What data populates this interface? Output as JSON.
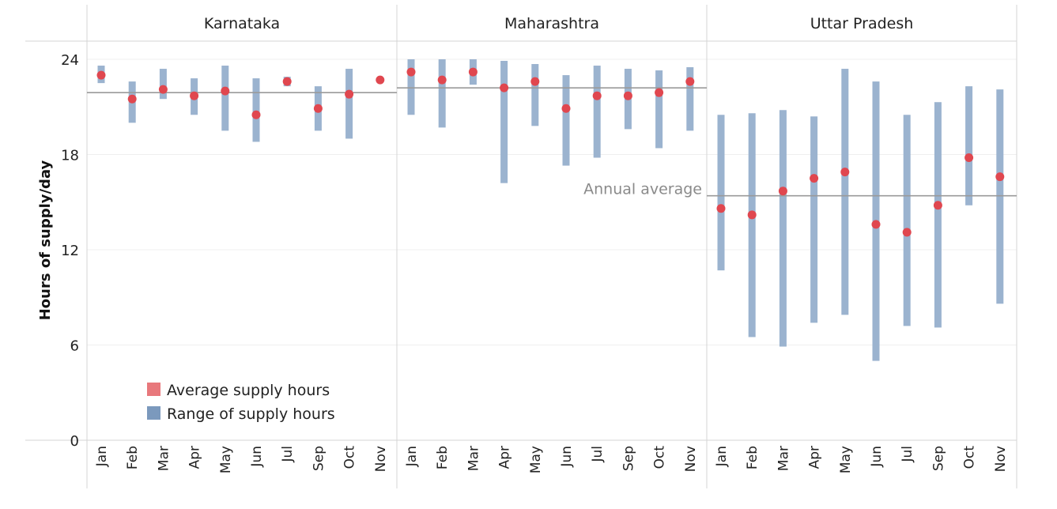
{
  "chart_data": {
    "type": "range-dot",
    "ylabel": "Hours of supply/day",
    "ylim": [
      0,
      24
    ],
    "yticks": [
      0,
      6,
      12,
      18,
      24
    ],
    "grid": true,
    "legend_position": "bottom-left",
    "legend": [
      {
        "label": "Average supply hours",
        "color": "#e8787c"
      },
      {
        "label": "Range of supply hours",
        "color": "#7b99bd"
      }
    ],
    "colors": {
      "dot": "#e0474f",
      "bar": "#9bb3cf",
      "reference_line": "#9a9a9a"
    },
    "reference_label": "Annual average",
    "panels": [
      {
        "name": "Karnataka",
        "annual_average": 21.9,
        "months": [
          "Jan",
          "Feb",
          "Mar",
          "Apr",
          "May",
          "Jun",
          "Jul",
          "Sep",
          "Oct",
          "Nov"
        ],
        "avg": [
          23.0,
          21.5,
          22.1,
          21.7,
          22.0,
          20.5,
          22.6,
          20.9,
          21.8,
          22.7
        ],
        "low": [
          22.5,
          20.0,
          21.5,
          20.5,
          19.5,
          18.8,
          22.3,
          19.5,
          19.0,
          null
        ],
        "high": [
          23.6,
          22.6,
          23.4,
          22.8,
          23.6,
          22.8,
          22.9,
          22.3,
          23.4,
          null
        ]
      },
      {
        "name": "Maharashtra",
        "annual_average": 22.2,
        "months": [
          "Jan",
          "Feb",
          "Mar",
          "Apr",
          "May",
          "Jun",
          "Jul",
          "Sep",
          "Oct",
          "Nov"
        ],
        "avg": [
          23.2,
          22.7,
          23.2,
          22.2,
          22.6,
          20.9,
          21.7,
          21.7,
          21.9,
          22.6
        ],
        "low": [
          20.5,
          19.7,
          22.4,
          16.2,
          19.8,
          17.3,
          17.8,
          19.6,
          18.4,
          19.5
        ],
        "high": [
          24.0,
          24.0,
          24.0,
          23.9,
          23.7,
          23.0,
          23.6,
          23.4,
          23.3,
          23.5
        ]
      },
      {
        "name": "Uttar Pradesh",
        "annual_average": 15.4,
        "months": [
          "Jan",
          "Feb",
          "Mar",
          "Apr",
          "May",
          "Jun",
          "Jul",
          "Sep",
          "Oct",
          "Nov"
        ],
        "avg": [
          14.6,
          14.2,
          15.7,
          16.5,
          16.9,
          13.6,
          13.1,
          14.8,
          17.8,
          16.6
        ],
        "low": [
          10.7,
          6.5,
          5.9,
          7.4,
          7.9,
          5.0,
          7.2,
          7.1,
          14.8,
          8.6
        ],
        "high": [
          20.5,
          20.6,
          20.8,
          20.4,
          23.4,
          22.6,
          20.5,
          21.3,
          22.3,
          22.1
        ]
      }
    ]
  }
}
